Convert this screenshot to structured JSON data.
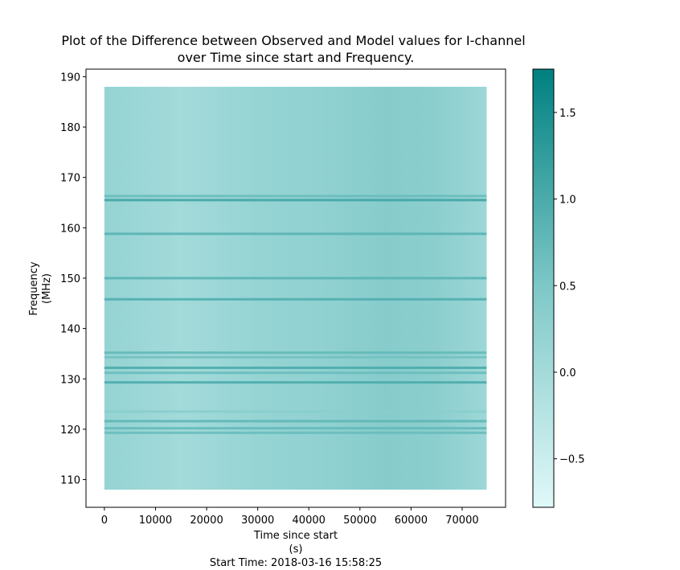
{
  "chart_data": {
    "type": "heatmap",
    "title_lines": [
      "Plot of the Difference between Observed and Model values for I-channel",
      "over Time since start and Frequency."
    ],
    "xlabel_lines": [
      "Time since start",
      "(s)"
    ],
    "footer": "Start Time: 2018-03-16 15:58:25",
    "ylabel_lines": [
      "Frequency",
      "(MHz)"
    ],
    "xlim": [
      -3600,
      78500
    ],
    "ylim": [
      104.5,
      191.5
    ],
    "data_x_range": [
      0,
      74800
    ],
    "data_y_range": [
      108,
      188
    ],
    "x_ticks": [
      0,
      10000,
      20000,
      30000,
      40000,
      50000,
      60000,
      70000
    ],
    "x_tick_labels": [
      "0",
      "10000",
      "20000",
      "30000",
      "40000",
      "50000",
      "60000",
      "70000"
    ],
    "y_ticks": [
      110,
      120,
      130,
      140,
      150,
      160,
      170,
      180,
      190
    ],
    "y_tick_labels": [
      "110",
      "120",
      "130",
      "140",
      "150",
      "160",
      "170",
      "180",
      "190"
    ],
    "colorbar": {
      "range": [
        -0.78,
        1.75
      ],
      "ticks": [
        -0.5,
        0.0,
        0.5,
        1.0,
        1.5
      ],
      "tick_labels": [
        "−0.5",
        "0.0",
        "0.5",
        "1.0",
        "1.5"
      ],
      "colors": [
        "#e0f8f8",
        "#7fc8c8",
        "#008080"
      ]
    },
    "base_value": 0.25,
    "time_trend": [
      {
        "t": 0,
        "v": 0.2
      },
      {
        "t": 15000,
        "v": 0.02
      },
      {
        "t": 30000,
        "v": 0.18
      },
      {
        "t": 42000,
        "v": 0.25
      },
      {
        "t": 55000,
        "v": 0.38
      },
      {
        "t": 65000,
        "v": 0.32
      },
      {
        "t": 74800,
        "v": 0.1
      }
    ],
    "rfi_lines": [
      {
        "freq": 165.5,
        "value": 1.1
      },
      {
        "freq": 166.3,
        "value": 0.7
      },
      {
        "freq": 158.8,
        "value": 0.85
      },
      {
        "freq": 150.0,
        "value": 0.85
      },
      {
        "freq": 145.8,
        "value": 0.95
      },
      {
        "freq": 135.2,
        "value": 0.75
      },
      {
        "freq": 134.3,
        "value": 0.6
      },
      {
        "freq": 132.2,
        "value": 1.0
      },
      {
        "freq": 131.2,
        "value": 0.7
      },
      {
        "freq": 129.3,
        "value": 1.0
      },
      {
        "freq": 121.6,
        "value": 0.8
      },
      {
        "freq": 120.2,
        "value": 0.75
      },
      {
        "freq": 119.3,
        "value": 0.7
      },
      {
        "freq": 123.5,
        "value": 0.35
      }
    ]
  }
}
